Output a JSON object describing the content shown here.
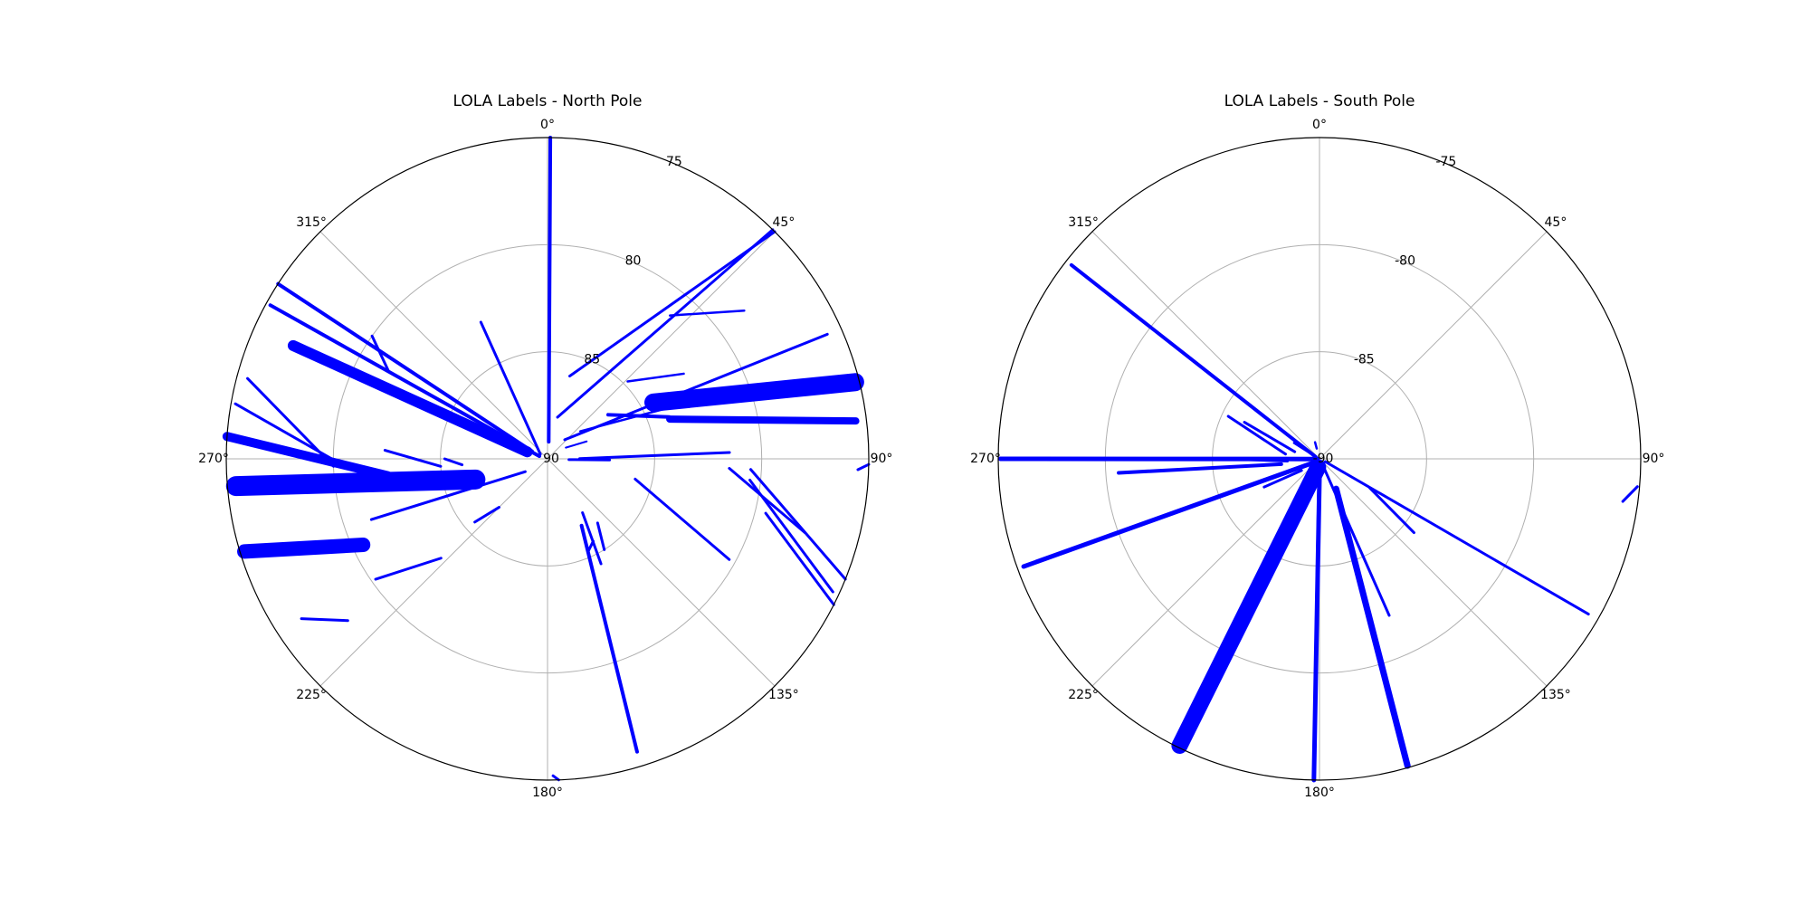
{
  "chart_data": [
    {
      "type": "scatter",
      "projection": "polar",
      "title": "LOLA Labels - North Pole",
      "theta_zero": "top",
      "theta_direction": "clockwise",
      "angle_ticks": [
        {
          "value": 0,
          "label": "0°"
        },
        {
          "value": 45,
          "label": "45°"
        },
        {
          "value": 90,
          "label": "90°"
        },
        {
          "value": 135,
          "label": "135°"
        },
        {
          "value": 180,
          "label": "180°"
        },
        {
          "value": 225,
          "label": "225°"
        },
        {
          "value": 270,
          "label": "270°"
        },
        {
          "value": 315,
          "label": "315°"
        }
      ],
      "radial_ticks": [
        {
          "value": 90,
          "label": "90"
        },
        {
          "value": 85,
          "label": "85"
        },
        {
          "value": 80,
          "label": "80"
        },
        {
          "value": 75,
          "label": "75"
        }
      ],
      "radial_tick_angle": 22.5,
      "rlim": [
        90,
        75
      ],
      "grid": true,
      "marker_color": "#0000ff",
      "tracks": [
        {
          "from": [
            0.5,
            75.0
          ],
          "to": [
            4,
            89.2
          ],
          "width": 4
        },
        {
          "from": [
            13.5,
            88.0
          ],
          "to": [
            44.5,
            75.0
          ],
          "width": 3
        },
        {
          "from": [
            15,
            86.0
          ],
          "to": [
            45,
            75.0
          ],
          "width": 3
        },
        {
          "from": [
            40.5,
            81.2
          ],
          "to": [
            53,
            78.5
          ],
          "width": 2.5
        },
        {
          "from": [
            46,
            84.8
          ],
          "to": [
            58,
            82.5
          ],
          "width": 2.5
        },
        {
          "from": [
            54,
            86.5
          ],
          "to": [
            71,
            84.0
          ],
          "width": 4
        },
        {
          "from": [
            42,
            88.8
          ],
          "to": [
            66,
            75.7
          ],
          "width": 3
        },
        {
          "from": [
            50,
            88.0
          ],
          "to": [
            69,
            82.0
          ],
          "width": 2.5
        },
        {
          "from": [
            58.5,
            89.0
          ],
          "to": [
            66,
            88.0
          ],
          "width": 2
        },
        {
          "from": [
            62,
            84.4
          ],
          "to": [
            76,
            75.2
          ],
          "width": 20
        },
        {
          "from": [
            72,
            84.0
          ],
          "to": [
            83,
            75.5
          ],
          "width": 8
        },
        {
          "from": [
            89.5,
            88.5
          ],
          "to": [
            88,
            81.5
          ],
          "width": 3
        },
        {
          "from": [
            93,
            81.5
          ],
          "to": [
            106,
            77.5
          ],
          "width": 3
        },
        {
          "from": [
            93,
            80.5
          ],
          "to": [
            112,
            75.0
          ],
          "width": 3
        },
        {
          "from": [
            96,
            80.5
          ],
          "to": [
            115,
            75.3
          ],
          "width": 3
        },
        {
          "from": [
            104,
            79.5
          ],
          "to": [
            117,
            75.0
          ],
          "width": 3
        },
        {
          "from": [
            91,
            75.0
          ],
          "to": [
            92,
            75.5
          ],
          "width": 3
        },
        {
          "from": [
            103,
            85.8
          ],
          "to": [
            119,
            80.3
          ],
          "width": 3
        },
        {
          "from": [
            92,
            89.0
          ],
          "to": [
            91,
            87.1
          ],
          "width": 3
        },
        {
          "from": [
            142,
            86.2
          ],
          "to": [
            148,
            85.0
          ],
          "width": 3
        },
        {
          "from": [
            151,
            85.6
          ],
          "to": [
            156,
            85.3
          ],
          "width": 3
        },
        {
          "from": [
            147,
            87.0
          ],
          "to": [
            153,
            84.5
          ],
          "width": 3
        },
        {
          "from": [
            153,
            86.5
          ],
          "to": [
            163,
            75.7
          ],
          "width": 4
        },
        {
          "from": [
            178,
            75.0
          ],
          "to": [
            179,
            75.2
          ],
          "width": 3
        },
        {
          "from": [
            225,
            86.8
          ],
          "to": [
            229,
            85.5
          ],
          "width": 3
        },
        {
          "from": [
            227,
            83.2
          ],
          "to": [
            235,
            80.2
          ],
          "width": 3
        },
        {
          "from": [
            231,
            78.0
          ],
          "to": [
            237,
            76.3
          ],
          "width": 3
        },
        {
          "from": [
            240,
            88.8
          ],
          "to": [
            251,
            81.3
          ],
          "width": 3
        },
        {
          "from": [
            245,
            80.5
          ],
          "to": [
            253,
            75.2
          ],
          "width": 16
        },
        {
          "from": [
            254,
            86.5
          ],
          "to": [
            265,
            75.4
          ],
          "width": 22
        },
        {
          "from": [
            266,
            86.0
          ],
          "to": [
            270,
            85.2
          ],
          "width": 3
        },
        {
          "from": [
            266,
            85.0
          ],
          "to": [
            273,
            82.4
          ],
          "width": 3
        },
        {
          "from": [
            264,
            82.5
          ],
          "to": [
            274,
            75.0
          ],
          "width": 10
        },
        {
          "from": [
            268,
            80.5
          ],
          "to": [
            280,
            75.2
          ],
          "width": 3
        },
        {
          "from": [
            268,
            80.0
          ],
          "to": [
            285,
            75.5
          ],
          "width": 3
        },
        {
          "from": [
            289,
            89.0
          ],
          "to": [
            294,
            77.0
          ],
          "width": 12
        },
        {
          "from": [
            288,
            89.6
          ],
          "to": [
            299,
            75.2
          ],
          "width": 4
        },
        {
          "from": [
            296,
            89.2
          ],
          "to": [
            303,
            75.0
          ],
          "width": 4
        },
        {
          "from": [
            303,
            89.6
          ],
          "to": [
            334,
            82.9
          ],
          "width": 3
        },
        {
          "from": [
            299,
            81.5
          ],
          "to": [
            305,
            80.0
          ],
          "width": 3
        }
      ]
    },
    {
      "type": "scatter",
      "projection": "polar",
      "title": "LOLA Labels - South Pole",
      "theta_zero": "top",
      "theta_direction": "clockwise",
      "angle_ticks": [
        {
          "value": 0,
          "label": "0°"
        },
        {
          "value": 45,
          "label": "45°"
        },
        {
          "value": 90,
          "label": "90°"
        },
        {
          "value": 135,
          "label": "135°"
        },
        {
          "value": 180,
          "label": "180°"
        },
        {
          "value": 225,
          "label": "225°"
        },
        {
          "value": 270,
          "label": "270°"
        },
        {
          "value": 315,
          "label": "315°"
        }
      ],
      "radial_ticks": [
        {
          "value": -90,
          "label": "-90"
        },
        {
          "value": -85,
          "label": "-85"
        },
        {
          "value": -80,
          "label": "-80"
        },
        {
          "value": -75,
          "label": "-75"
        }
      ],
      "radial_tick_angle": 22.5,
      "rlim": [
        -90,
        -75
      ],
      "grid": true,
      "marker_color": "#0000ff",
      "tracks": [
        {
          "from": [
            116,
            -89.7
          ],
          "to": [
            120,
            -75.5
          ],
          "width": 3
        },
        {
          "from": [
            95,
            -75.1
          ],
          "to": [
            98,
            -75.7
          ],
          "width": 3
        },
        {
          "from": [
            120,
            -87.3
          ],
          "to": [
            128,
            -84.4
          ],
          "width": 3
        },
        {
          "from": [
            150,
            -89.8
          ],
          "to": [
            156,
            -82.0
          ],
          "width": 3
        },
        {
          "from": [
            151,
            -88.4
          ],
          "to": [
            164,
            -75.1
          ],
          "width": 7
        },
        {
          "from": [
            178,
            -89.7
          ],
          "to": [
            181,
            -75.0
          ],
          "width": 5
        },
        {
          "from": [
            180,
            -89.8
          ],
          "to": [
            181,
            -79.4
          ],
          "width": 4
        },
        {
          "from": [
            190,
            -89.6
          ],
          "to": [
            206,
            -75.1
          ],
          "width": 18
        },
        {
          "from": [
            237,
            -89.0
          ],
          "to": [
            243,
            -87.1
          ],
          "width": 3
        },
        {
          "from": [
            240,
            -89.6
          ],
          "to": [
            250,
            -75.3
          ],
          "width": 5
        },
        {
          "from": [
            262,
            -88.2
          ],
          "to": [
            266,
            -80.6
          ],
          "width": 4
        },
        {
          "from": [
            266,
            -88.5
          ],
          "to": [
            270,
            -85.5
          ],
          "width": 3
        },
        {
          "from": [
            265,
            -89.9
          ],
          "to": [
            270,
            -75.1
          ],
          "width": 5
        },
        {
          "from": [
            278,
            -88.4
          ],
          "to": [
            295,
            -85.3
          ],
          "width": 3
        },
        {
          "from": [
            286,
            -88.8
          ],
          "to": [
            296,
            -86.1
          ],
          "width": 3
        },
        {
          "from": [
            300,
            -89.8
          ],
          "to": [
            302,
            -88.6
          ],
          "width": 2.5
        },
        {
          "from": [
            297,
            -89.8
          ],
          "to": [
            308,
            -75.3
          ],
          "width": 4
        },
        {
          "from": [
            345,
            -89.5
          ],
          "to": [
            345,
            -89.2
          ],
          "width": 2.5
        }
      ]
    }
  ]
}
